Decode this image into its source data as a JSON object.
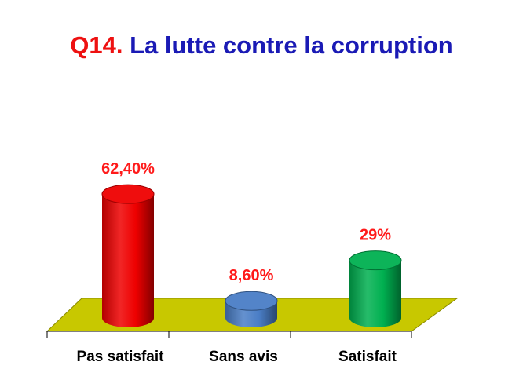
{
  "chart_data": {
    "type": "bar",
    "title_prefix": "Q14.",
    "title_text": "La lutte contre la corruption",
    "categories": [
      "Pas satisfait",
      "Sans avis",
      "Satisfait"
    ],
    "values": [
      62.4,
      8.6,
      29
    ],
    "data_labels": [
      "62,40%",
      "8,60%",
      "29%"
    ],
    "colors": [
      "#ee0000",
      "#4a7ec6",
      "#00b050"
    ],
    "floor_color": "#c8c800",
    "title_prefix_color": "#ee1111",
    "title_text_color": "#1a1ab5",
    "data_label_color": "#ff1a1a",
    "ylim": [
      0,
      100
    ],
    "grid": false,
    "legend": "none",
    "style": "3d-cylinder"
  }
}
